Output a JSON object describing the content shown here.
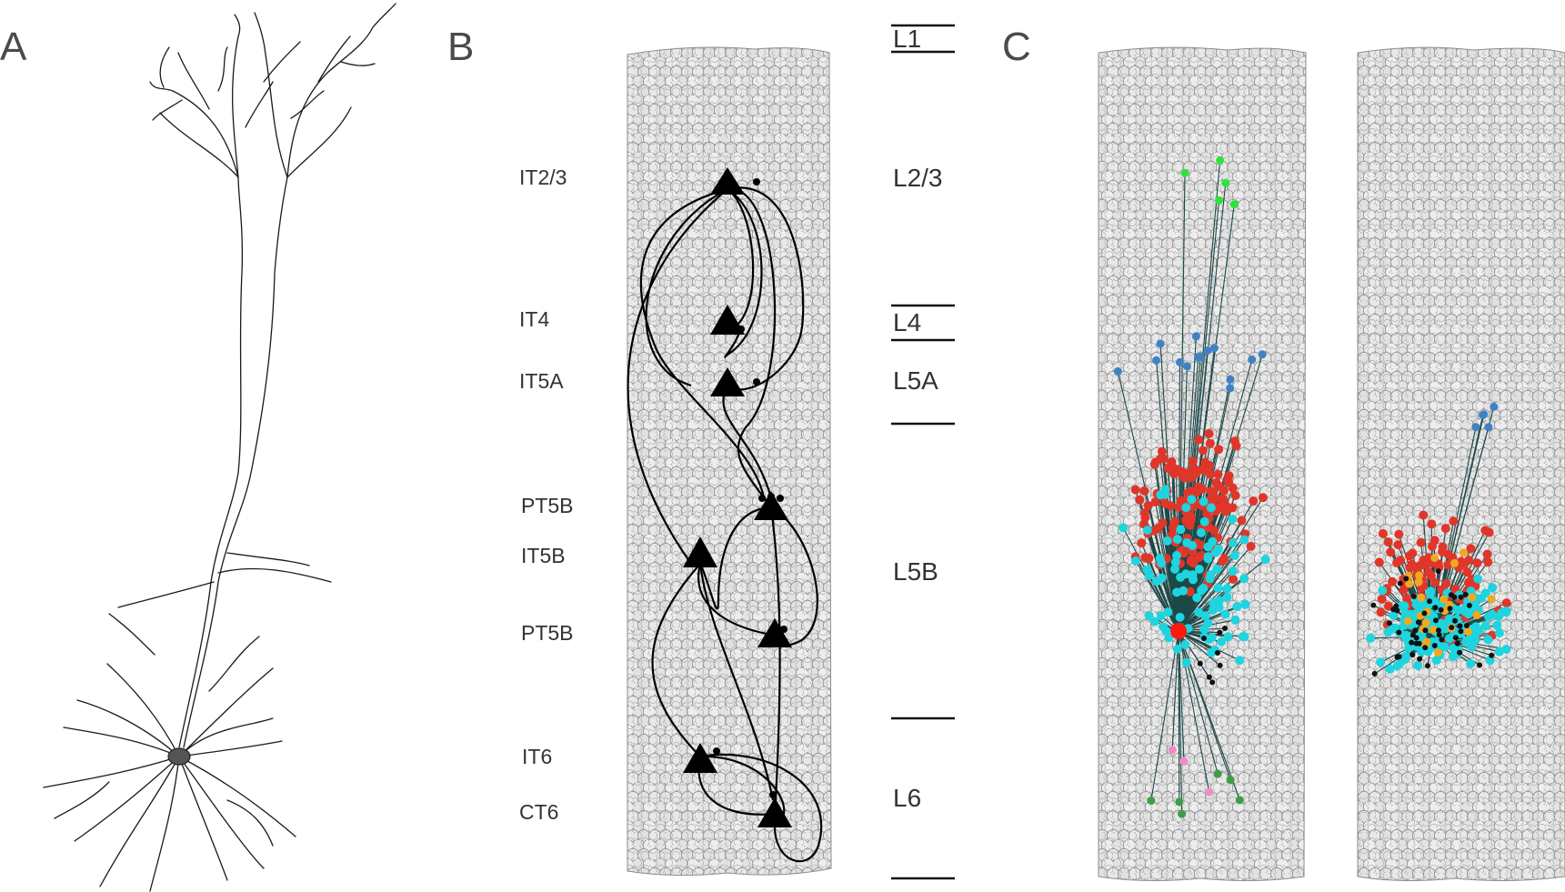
{
  "panels": {
    "a": "A",
    "b": "B",
    "c": "C"
  },
  "cell_types": {
    "it23": "IT2/3",
    "it4": "IT4",
    "it5a": "IT5A",
    "pt5b_upper": "PT5B",
    "it5b": "IT5B",
    "pt5b_lower": "PT5B",
    "it6": "IT6",
    "ct6": "CT6"
  },
  "layers": {
    "l1": "L1",
    "l23": "L2/3",
    "l4": "L4",
    "l5a": "L5A",
    "l5b": "L5B",
    "l6": "L6"
  },
  "colors": {
    "soma_fill": "#e6e6e6",
    "soma_stroke": "#8a8a8a",
    "connection_line": "#1d4848",
    "red": "#e0362a",
    "cyan": "#1ed4de",
    "blue": "#3f82c4",
    "green": "#2fe23a",
    "dark_green": "#3f9c4a",
    "pink": "#f08ac8",
    "orange": "#f2a81e",
    "black": "#111111"
  },
  "icons": {
    "neuron_triangle": "triangle-icon",
    "synapse_dot": "dot-icon"
  }
}
